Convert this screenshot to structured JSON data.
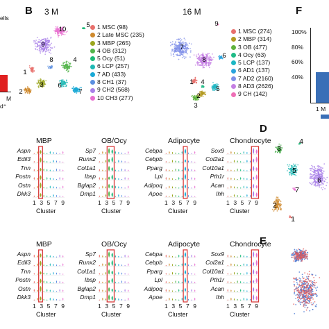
{
  "panel_a_fragment": {
    "top_label": "ells",
    "bottom_label": "M",
    "bottom_label2": "d⁺"
  },
  "panel_b": {
    "letter": "B",
    "left": {
      "title": "3 M",
      "clusters": [
        {
          "num": "1",
          "label": "1 MSC (98)",
          "color": "#e8706c"
        },
        {
          "num": "2",
          "label": "2 Late MSC (235)",
          "color": "#cf8a2e"
        },
        {
          "num": "3",
          "label": "3 MBP (265)",
          "color": "#9ba61f"
        },
        {
          "num": "4",
          "label": "4 OB (312)",
          "color": "#52b44a"
        },
        {
          "num": "5",
          "label": "5 Ocy (51)",
          "color": "#1cba78"
        },
        {
          "num": "6",
          "label": "6 LCP (257)",
          "color": "#1fb8b4"
        },
        {
          "num": "7",
          "label": "7 AD (433)",
          "color": "#1aa9d6"
        },
        {
          "num": "8",
          "label": "8 CH1 (37)",
          "color": "#5b8fe0"
        },
        {
          "num": "9",
          "label": "9 CH2 (568)",
          "color": "#a87fe8"
        },
        {
          "num": "10",
          "label": "10 CH3 (277)",
          "color": "#e86fd0"
        }
      ]
    },
    "right": {
      "title": "16 M",
      "clusters": [
        {
          "num": "1",
          "label": "1 MSC (274)",
          "color": "#e8706c"
        },
        {
          "num": "2",
          "label": "2 MBP (314)",
          "color": "#b39a20"
        },
        {
          "num": "3",
          "label": "3 OB (477)",
          "color": "#5fb23c"
        },
        {
          "num": "4",
          "label": "4 Ocy (63)",
          "color": "#1fbb87"
        },
        {
          "num": "5",
          "label": "5 LCP (137)",
          "color": "#1db6c3"
        },
        {
          "num": "6",
          "label": "6 AD1 (137)",
          "color": "#2aa3dd"
        },
        {
          "num": "7",
          "label": "7 AD2 (2160)",
          "color": "#7f8fe8"
        },
        {
          "num": "8",
          "label": "8 AD3 (2626)",
          "color": "#c47fe3"
        },
        {
          "num": "9",
          "label": "9 CH (142)",
          "color": "#ee6fb6"
        }
      ]
    }
  },
  "panel_f": {
    "letter": "F",
    "ylabels": [
      "100%",
      "80%",
      "60%",
      "40%"
    ],
    "xlabel": "1 M"
  },
  "panel_d": {
    "letter": "D",
    "clusters": [
      "3",
      "4",
      "5",
      "6",
      "2",
      "7",
      "1"
    ]
  },
  "panel_e": {
    "letter": "E"
  },
  "violin_rows": [
    {
      "groups": [
        {
          "title": "MBP",
          "genes": [
            "Aspn",
            "Edil3",
            "Tnn",
            "Postn",
            "Ostn",
            "Dkk3"
          ]
        },
        {
          "title": "OB/Ocy",
          "genes": [
            "Sp7",
            "Runx2",
            "Col1a1",
            "Ibsp",
            "Bglap2",
            "Dmp1"
          ]
        },
        {
          "title": "Adipocyte",
          "genes": [
            "Cebpa",
            "Cebpb",
            "Pparg",
            "Lpl",
            "Adipoq",
            "Apoe"
          ]
        },
        {
          "title": "Chondrocyte",
          "genes": [
            "Sox9",
            "Col2a1",
            "Col10a1",
            "Pth1r",
            "Acan",
            "Ihh"
          ]
        }
      ],
      "ticks": [
        "1",
        "3",
        "5",
        "7",
        "9"
      ],
      "xlabel": "Cluster"
    },
    {
      "groups": [
        {
          "title": "MBP",
          "genes": [
            "Aspn",
            "Edil3",
            "Tnn",
            "Postn",
            "Ostn",
            "Dkk3"
          ]
        },
        {
          "title": "OB/Ocy",
          "genes": [
            "Sp7",
            "Runx2",
            "Col1a1",
            "Ibsp",
            "Bglap2",
            "Dmp1"
          ]
        },
        {
          "title": "Adipocyte",
          "genes": [
            "Cebpa",
            "Cebpb",
            "Pparg",
            "Lpl",
            "Adipoq",
            "Apoe"
          ]
        },
        {
          "title": "Chondrocyte",
          "genes": [
            "Sox9",
            "Col2a1",
            "Col10a1",
            "Pth1r",
            "Acan",
            "Ihh"
          ]
        }
      ],
      "ticks": [
        "1",
        "3",
        "5",
        "7",
        "9"
      ],
      "xlabel": "Cluster"
    }
  ],
  "colors": {
    "highlight_box": "#d93b3b",
    "bar_blue": "#3a6fb7",
    "red_bar": "#e02020"
  }
}
